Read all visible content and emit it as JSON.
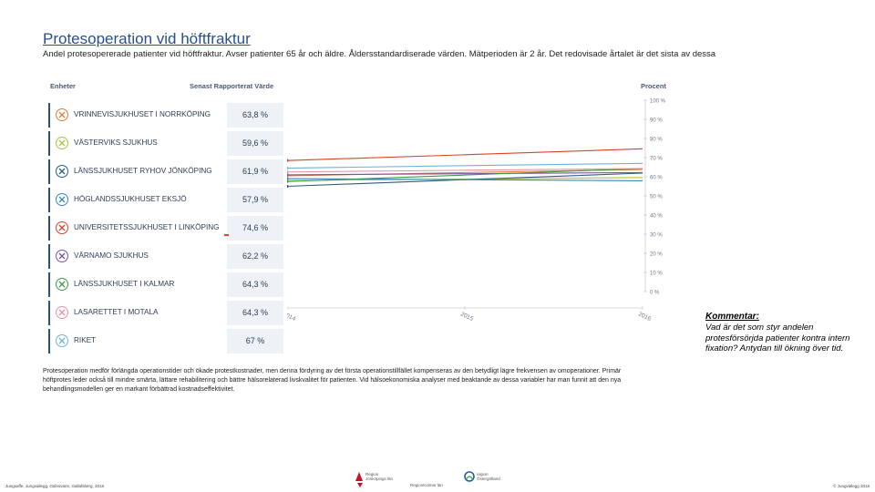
{
  "slide": {
    "title": "Protesoperation vid höftfraktur",
    "subtitle": "Andel protesopererade patienter vid höftfraktur. Avser patienter 65 år och äldre. Åldersstandardiserade värden. Mätperioden är 2 år. Det redovisade årtalet är det sista av dessa"
  },
  "panel": {
    "units_header": "Enheter",
    "value_header": "Senast Rapporterat Värde",
    "percent_header": "Procent"
  },
  "units": [
    {
      "label": "VRINNEVISJUKHUSET I NORRKÖPING",
      "value": "63,8 %",
      "color": "#e07b39"
    },
    {
      "label": "VÄSTERVIKS SJUKHUS",
      "value": "59,6 %",
      "color": "#a9c63b"
    },
    {
      "label": "LÄNSSJUKHUSET RYHOV JÖNKÖPING",
      "value": "61,9 %",
      "color": "#2e5d82"
    },
    {
      "label": "HÖGLANDSSJUKHUSET EKSJÖ",
      "value": "57,9 %",
      "color": "#3a86b8"
    },
    {
      "label": "UNIVERSITETSSJUKHUSET I LINKÖPING",
      "value": "74,6 %",
      "color": "#d9432c"
    },
    {
      "label": "VÄRNAMO SJUKHUS",
      "value": "62,2 %",
      "color": "#7c52a8"
    },
    {
      "label": "LÄNSSJUKHUSET I KALMAR",
      "value": "64,3 %",
      "color": "#3f9a48"
    },
    {
      "label": "LASARETTET I MOTALA",
      "value": "64,3 %",
      "color": "#e595a8"
    },
    {
      "label": "RIKET",
      "value": "67 %",
      "color": "#6fb4d8"
    }
  ],
  "chart_data": {
    "type": "line",
    "x": [
      "2014",
      "2015",
      "2016"
    ],
    "ylabel": "Procent",
    "ylim": [
      0,
      100
    ],
    "yticks": [
      "0 %",
      "10 %",
      "20 %",
      "30 %",
      "40 %",
      "50 %",
      "60 %",
      "70 %",
      "80 %",
      "90 %",
      "100 %"
    ],
    "grid": false,
    "series": [
      {
        "name": "VRINNEVISJUKHUSET I NORRKÖPING",
        "color": "#e07b39",
        "values": [
          60.5,
          62.2,
          63.8
        ]
      },
      {
        "name": "VÄSTERVIKS SJUKHUS",
        "color": "#a9c63b",
        "values": [
          58.0,
          58.8,
          59.6
        ]
      },
      {
        "name": "LÄNSSJUKHUSET RYHOV JÖNKÖPING",
        "color": "#2e5d82",
        "values": [
          55.0,
          58.5,
          61.9
        ]
      },
      {
        "name": "HÖGLANDSSJUKHUSET EKSJÖ",
        "color": "#3a86b8",
        "values": [
          59.0,
          58.5,
          57.9
        ]
      },
      {
        "name": "UNIVERSITETSSJUKHUSET I LINKÖPING",
        "color": "#d9432c",
        "values": [
          68.5,
          71.5,
          74.6
        ]
      },
      {
        "name": "VÄRNAMO SJUKHUS",
        "color": "#7c52a8",
        "values": [
          61.0,
          61.6,
          62.2
        ]
      },
      {
        "name": "LÄNSSJUKHUSET I KALMAR",
        "color": "#3f9a48",
        "values": [
          57.5,
          60.9,
          64.3
        ]
      },
      {
        "name": "LASARETTET I MOTALA",
        "color": "#e595a8",
        "values": [
          62.5,
          63.4,
          64.3
        ]
      },
      {
        "name": "RIKET",
        "color": "#6fb4d8",
        "values": [
          64.5,
          65.8,
          67.0
        ]
      }
    ]
  },
  "comment": {
    "title": "Kommentar:",
    "body": "Vad är det som styr andelen protesförsörjda patienter kontra intern fixation? Antydan till ökning över tid."
  },
  "paragraph": "Protesoperation medför förlängda operationstider och ökade protestkostnader, men denna fördyring av det första operationstillfället kompenseras av den betydligt lägre frekvensen av omoperationer. Primär höftprotes leder också till mindre smärta, lättare rehabilitering och bättre hälsorelaterad livskvalitet för patienten. Vid hälsoekonomiska analyser med beaktande av dessa variabler har man funnit att den nya behandlingsmodellen ger en markant förbättrad kostnadseffektivitet.",
  "footer": {
    "left": "Jungsaffe, Jungvallegg, Odinsvarin, Gallafsberg, 2018",
    "right": "© Jungvallegg 2018"
  },
  "logos": {
    "logo1": "Region\nJönköpings län",
    "logo2": "RegionKalmar län",
    "logo3": "region\nÖstergötland"
  }
}
